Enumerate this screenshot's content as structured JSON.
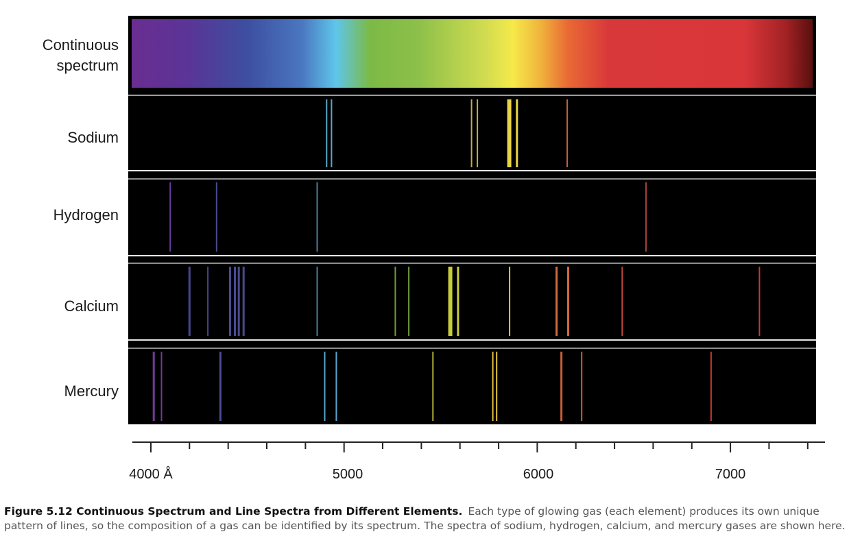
{
  "rows": [
    {
      "id": "continuous",
      "label_lines": [
        "Continuous",
        "spectrum"
      ]
    },
    {
      "id": "sodium",
      "label_lines": [
        "Sodium"
      ],
      "lines": [
        {
          "w": 4910,
          "color": "#5aa6c9",
          "width": 2
        },
        {
          "w": 4935,
          "color": "#5aa6c9",
          "width": 2
        },
        {
          "w": 5660,
          "color": "#c7ae3e",
          "width": 2
        },
        {
          "w": 5690,
          "color": "#c7ae3e",
          "width": 2
        },
        {
          "w": 5855,
          "color": "#e8d545",
          "width": 6
        },
        {
          "w": 5895,
          "color": "#e8d545",
          "width": 3
        },
        {
          "w": 6155,
          "color": "#c8613a",
          "width": 2
        }
      ]
    },
    {
      "id": "hydrogen",
      "label_lines": [
        "Hydrogen"
      ],
      "lines": [
        {
          "w": 4100,
          "color": "#6a3a9a",
          "width": 2
        },
        {
          "w": 4340,
          "color": "#4a4c8e",
          "width": 2
        },
        {
          "w": 4861,
          "color": "#4e7d99",
          "width": 2
        },
        {
          "w": 6563,
          "color": "#a8403a",
          "width": 2
        }
      ]
    },
    {
      "id": "calcium",
      "label_lines": [
        "Calcium"
      ],
      "lines": [
        {
          "w": 4200,
          "color": "#4a4592",
          "width": 3
        },
        {
          "w": 4295,
          "color": "#4a4592",
          "width": 2
        },
        {
          "w": 4410,
          "color": "#4a4b90",
          "width": 3
        },
        {
          "w": 4435,
          "color": "#4a4b90",
          "width": 3
        },
        {
          "w": 4455,
          "color": "#4a4b90",
          "width": 3
        },
        {
          "w": 4480,
          "color": "#4a4b90",
          "width": 3
        },
        {
          "w": 4861,
          "color": "#4e7d99",
          "width": 2
        },
        {
          "w": 5265,
          "color": "#6f9b3c",
          "width": 2
        },
        {
          "w": 5335,
          "color": "#6f9b3c",
          "width": 2
        },
        {
          "w": 5550,
          "color": "#c6cd3b",
          "width": 6
        },
        {
          "w": 5590,
          "color": "#c6cd3b",
          "width": 3
        },
        {
          "w": 5857,
          "color": "#e1c23f",
          "width": 2
        },
        {
          "w": 6100,
          "color": "#d06a38",
          "width": 3
        },
        {
          "w": 6160,
          "color": "#d06a38",
          "width": 3
        },
        {
          "w": 6440,
          "color": "#c44637",
          "width": 2
        },
        {
          "w": 7150,
          "color": "#c43a33",
          "width": 2
        }
      ]
    },
    {
      "id": "mercury",
      "label_lines": [
        "Mercury"
      ],
      "lines": [
        {
          "w": 4015,
          "color": "#713a99",
          "width": 3
        },
        {
          "w": 4055,
          "color": "#713a99",
          "width": 2
        },
        {
          "w": 4360,
          "color": "#4a4c96",
          "width": 3
        },
        {
          "w": 4900,
          "color": "#5aa6d0",
          "width": 2
        },
        {
          "w": 4960,
          "color": "#5aa6d0",
          "width": 2
        },
        {
          "w": 5460,
          "color": "#aeae3a",
          "width": 2
        },
        {
          "w": 5770,
          "color": "#e1c23f",
          "width": 2
        },
        {
          "w": 5790,
          "color": "#e1c23f",
          "width": 2
        },
        {
          "w": 6125,
          "color": "#c85e3a",
          "width": 3
        },
        {
          "w": 6230,
          "color": "#d85a3a",
          "width": 2
        },
        {
          "w": 6900,
          "color": "#c23a33",
          "width": 2
        }
      ]
    }
  ],
  "axis": {
    "range": [
      3900,
      7500
    ],
    "major_ticks": [
      4000,
      5000,
      6000,
      7000
    ],
    "minor_step": 200,
    "labels": [
      "4000 Å",
      "5000",
      "6000",
      "7000"
    ]
  },
  "colors": {
    "panel_background": "#000000",
    "separator": "#ffffff",
    "spectrum_violet": "#6a2d91",
    "spectrum_blue": "#3d4fa0",
    "spectrum_cyan": "#5ec6ea",
    "spectrum_green": "#7cba45",
    "spectrum_yellow": "#f6e94a",
    "spectrum_orange": "#e96a34",
    "spectrum_red": "#d9383a",
    "spectrum_darkred": "#5a0f0f"
  },
  "caption": {
    "title": "Figure 5.12 Continuous Spectrum and Line Spectra from Different Elements.",
    "text": "Each type of glowing gas (each element) produces its own unique pattern of lines, so the composition of a gas can be identified by its spectrum. The spectra of sodium, hydrogen, calcium, and mercury gases are shown here."
  }
}
